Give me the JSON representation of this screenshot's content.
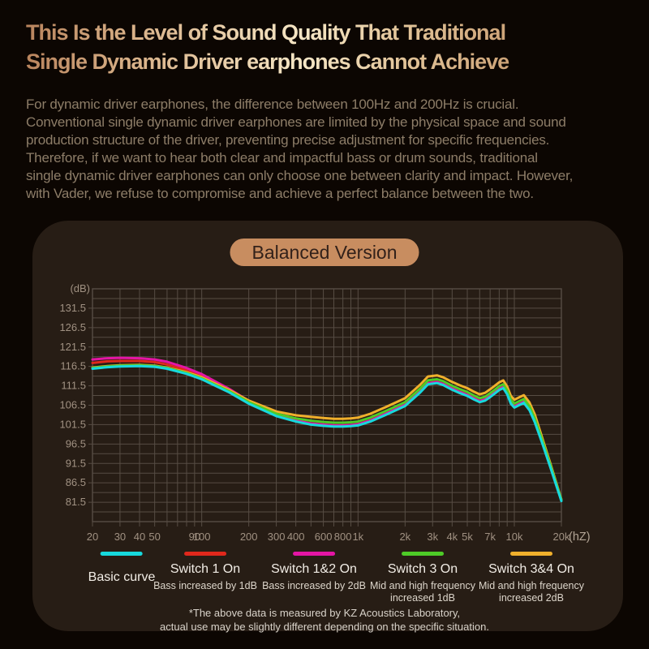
{
  "header": {
    "title_lines": [
      "This Is the Level of Sound Quality That Traditional",
      "Single Dynamic Driver earphones Cannot Achieve"
    ],
    "body_lines": [
      "For dynamic driver earphones, the difference between 100Hz and 200Hz is crucial.",
      "Conventional single dynamic driver earphones are limited by the physical space and sound",
      "production structure of the driver, preventing precise adjustment for specific frequencies.",
      "Therefore, if we want to hear both clear and impactful bass or drum sounds, traditional",
      "single dynamic driver earphones can only choose one between clarity and impact. However,",
      "with Vader, we refuse to compromise and achieve a perfect balance between the two."
    ]
  },
  "panel": {
    "badge": "Balanced Version",
    "footnote_lines": [
      "*The above data is measured by KZ Acoustics Laboratory,",
      "actual use may be slightly different depending on the specific situation."
    ]
  },
  "chart_data": {
    "type": "line",
    "title": "Balanced Version",
    "x_axis": {
      "label": "(hZ)",
      "scale": "log",
      "min": 20,
      "max": 20000,
      "grid": [
        20,
        30,
        40,
        50,
        60,
        70,
        80,
        90,
        100,
        200,
        300,
        400,
        500,
        600,
        700,
        800,
        900,
        1000,
        2000,
        3000,
        4000,
        5000,
        6000,
        7000,
        8000,
        9000,
        10000,
        20000
      ],
      "ticks": [
        [
          20,
          "20"
        ],
        [
          30,
          "30"
        ],
        [
          40,
          "40"
        ],
        [
          50,
          "50"
        ],
        [
          90,
          "90"
        ],
        [
          100,
          "100"
        ],
        [
          200,
          "200"
        ],
        [
          300,
          "300"
        ],
        [
          400,
          "400"
        ],
        [
          600,
          "600"
        ],
        [
          800,
          "800"
        ],
        [
          1000,
          "1k"
        ],
        [
          2000,
          "2k"
        ],
        [
          3000,
          "3k"
        ],
        [
          4000,
          "4k"
        ],
        [
          5000,
          "5k"
        ],
        [
          7000,
          "7k"
        ],
        [
          10000,
          "10k"
        ],
        [
          20000,
          "20k"
        ]
      ]
    },
    "y_axis": {
      "label": "(dB)",
      "min": 76.5,
      "max": 136.5,
      "grid_step": 2.5,
      "ticks": [
        131.5,
        126.5,
        121.5,
        116.5,
        111.5,
        106.5,
        101.5,
        96.5,
        91.5,
        86.5,
        81.5
      ]
    },
    "grid": true,
    "frequencies": [
      20,
      25,
      30,
      40,
      50,
      60,
      80,
      100,
      150,
      200,
      300,
      400,
      500,
      600,
      700,
      800,
      900,
      1000,
      1200,
      1500,
      2000,
      2500,
      2800,
      3200,
      3500,
      4000,
      4500,
      5000,
      5500,
      6000,
      6500,
      7000,
      7500,
      8000,
      8500,
      9000,
      9500,
      10000,
      10700,
      11500,
      12500,
      13500,
      15000,
      17000,
      20000
    ],
    "series": [
      {
        "name": "Switch 1 On",
        "color": "#e0281c",
        "values": [
          117.4,
          117.8,
          117.9,
          117.9,
          117.6,
          117.0,
          115.5,
          114.0,
          110.3,
          107.3,
          104.0,
          102.5,
          101.7,
          101.4,
          101.2,
          101.2,
          101.3,
          101.5,
          102.5,
          104.2,
          106.5,
          110.0,
          112.1,
          112.4,
          111.9,
          110.7,
          109.8,
          109.1,
          108.2,
          107.5,
          107.9,
          108.8,
          109.7,
          110.6,
          111.1,
          109.5,
          107.1,
          106.1,
          106.7,
          107.3,
          105.4,
          102.4,
          97.2,
          90.6,
          81.9
        ]
      },
      {
        "name": "Switch 1&2 On",
        "color": "#e415a5",
        "values": [
          118.3,
          118.6,
          118.7,
          118.6,
          118.3,
          117.7,
          116.1,
          114.5,
          110.7,
          107.6,
          104.1,
          102.6,
          101.8,
          101.5,
          101.3,
          101.3,
          101.4,
          101.6,
          102.6,
          104.3,
          106.6,
          110.1,
          112.2,
          112.5,
          112.0,
          110.8,
          109.9,
          109.2,
          108.3,
          107.6,
          108.0,
          108.9,
          109.8,
          110.7,
          111.2,
          109.6,
          107.2,
          106.2,
          106.8,
          107.4,
          105.5,
          102.5,
          97.3,
          90.7,
          82.0
        ]
      },
      {
        "name": "Switch 3&4 On",
        "color": "#f0b02c",
        "values": [
          116.2,
          116.6,
          116.8,
          116.9,
          116.7,
          116.2,
          115.0,
          113.7,
          110.4,
          107.7,
          104.9,
          103.9,
          103.5,
          103.2,
          103.0,
          103.0,
          103.1,
          103.3,
          104.3,
          106.0,
          108.3,
          111.8,
          113.9,
          114.2,
          113.7,
          112.5,
          111.6,
          110.9,
          110.0,
          109.3,
          109.7,
          110.6,
          111.5,
          112.4,
          112.9,
          111.3,
          108.9,
          107.9,
          108.5,
          109.1,
          107.2,
          104.2,
          98.4,
          91.5,
          82.2
        ]
      },
      {
        "name": "Switch 3 On",
        "color": "#4ecb27",
        "values": [
          116.1,
          116.5,
          116.7,
          116.8,
          116.6,
          116.1,
          114.8,
          113.4,
          110.1,
          107.3,
          104.3,
          103.1,
          102.5,
          102.2,
          102.0,
          102.0,
          102.1,
          102.3,
          103.3,
          105.0,
          107.3,
          110.8,
          112.9,
          113.2,
          112.7,
          111.5,
          110.6,
          109.9,
          109.0,
          108.3,
          108.7,
          109.6,
          110.5,
          111.4,
          111.9,
          110.3,
          107.9,
          106.9,
          107.5,
          108.1,
          106.2,
          103.2,
          97.8,
          91.1,
          82.1
        ]
      },
      {
        "name": "Basic curve",
        "color": "#17d9dd",
        "values": [
          115.9,
          116.3,
          116.5,
          116.6,
          116.4,
          115.9,
          114.6,
          113.2,
          109.8,
          106.9,
          103.7,
          102.3,
          101.5,
          101.2,
          101.0,
          101.0,
          101.1,
          101.3,
          102.3,
          104.0,
          106.3,
          109.8,
          111.9,
          112.2,
          111.7,
          110.5,
          109.6,
          108.9,
          108.0,
          107.3,
          107.7,
          108.6,
          109.5,
          110.4,
          110.9,
          109.3,
          106.9,
          105.9,
          106.5,
          107.1,
          105.2,
          102.2,
          97.0,
          90.5,
          81.8
        ]
      }
    ],
    "legend": [
      {
        "title": "Basic curve",
        "subtitle": "",
        "color": "#17d9dd"
      },
      {
        "title": "Switch 1 On",
        "subtitle": "Bass increased by 1dB",
        "color": "#e0281c"
      },
      {
        "title": "Switch 1&2 On",
        "subtitle": "Bass increased by 2dB",
        "color": "#e415a5"
      },
      {
        "title": "Switch 3 On",
        "subtitle": "Mid and high frequency\nincreased 1dB",
        "color": "#4ecb27"
      },
      {
        "title": "Switch 3&4 On",
        "subtitle": "Mid and high frequency\nincreased 2dB",
        "color": "#f0b02c"
      }
    ]
  }
}
